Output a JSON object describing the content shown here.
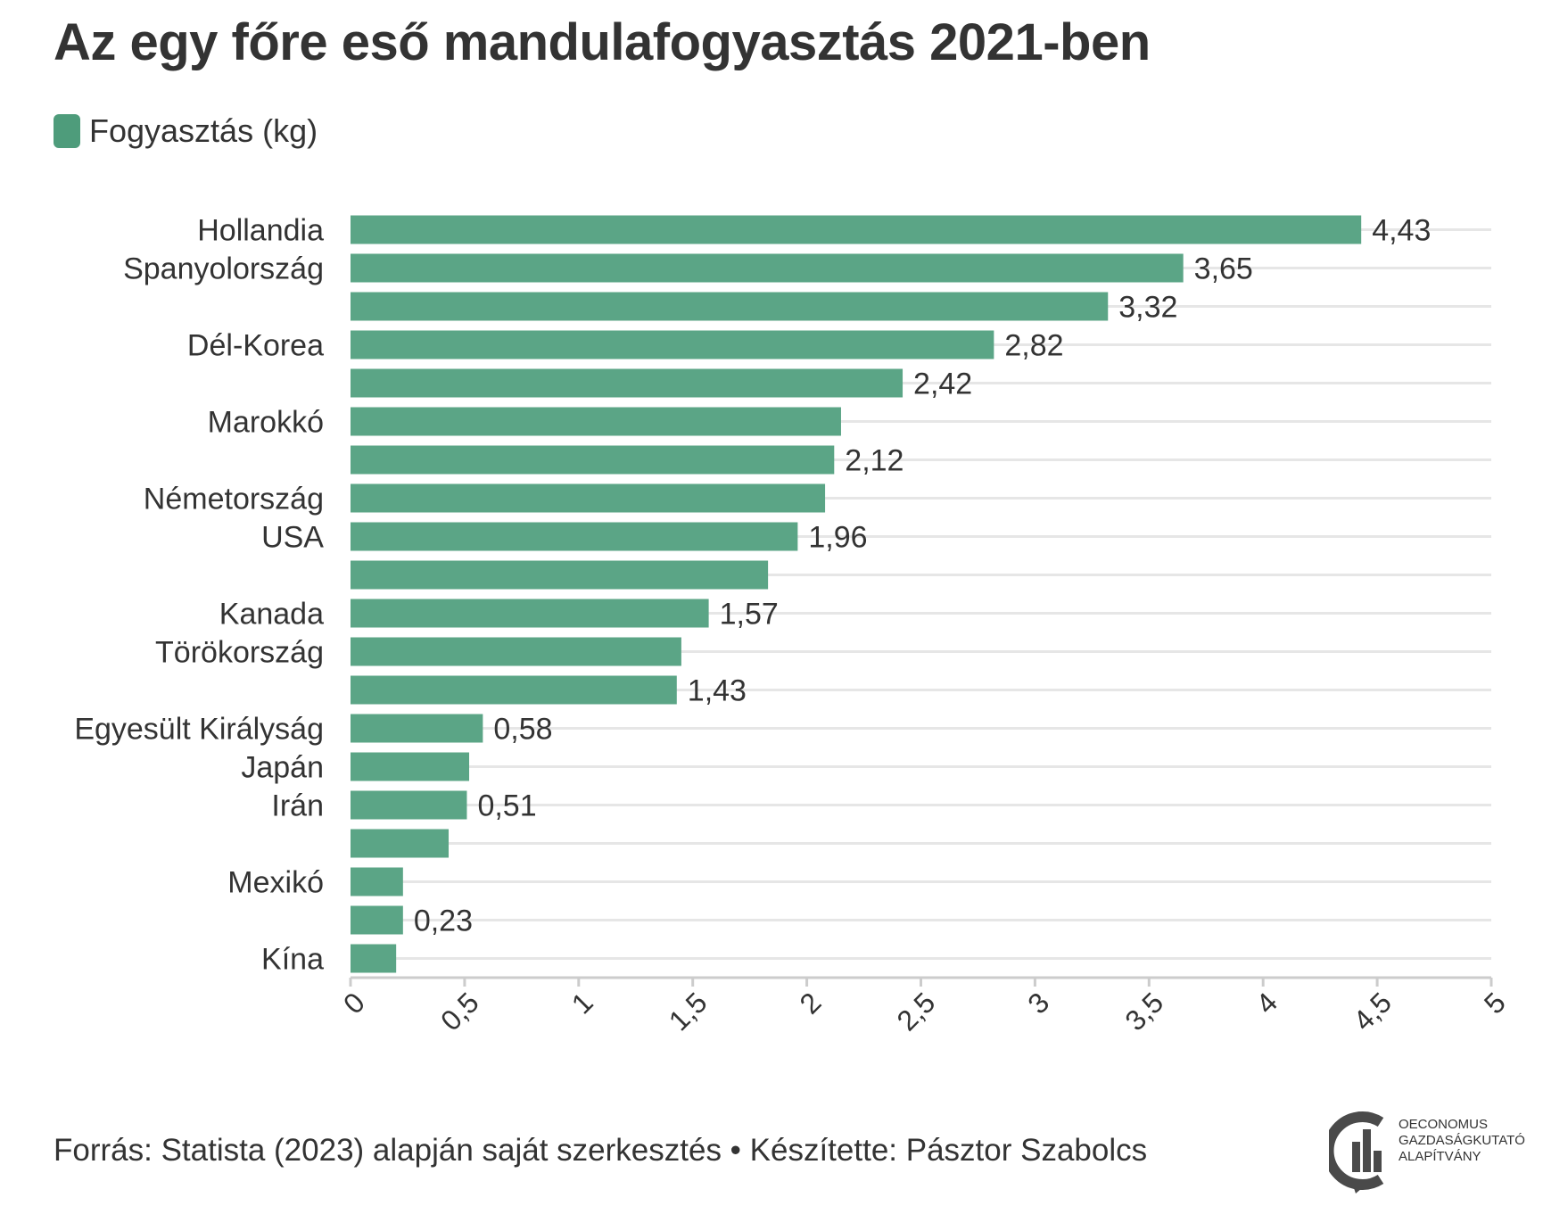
{
  "title": "Az egy főre eső mandulafogyasztás 2021-ben",
  "legend_label": "Fogyasztás (kg)",
  "footer": "Forrás: Statista (2023) alapján saját szerkesztés • Készítette: Pásztor Szabolcs",
  "logo": {
    "line1": "OECONOMUS",
    "line2": "GAZDASÁGKUTATÓ",
    "line3": "ALAPÍTVÁNY"
  },
  "colors": {
    "bar": "#5ba586",
    "legend": "#4e9c7b",
    "grid": "#e6e6e6",
    "axis": "#cccccc",
    "logo": "#4a4a4a"
  },
  "chart_data": {
    "type": "bar",
    "orientation": "horizontal",
    "categories": [
      "Hollandia",
      "Spanyolország",
      "",
      "Dél-Korea",
      "",
      "Marokkó",
      "",
      "Németország",
      "USA",
      "",
      "Kanada",
      "Törökország",
      "",
      "Egyesült Királyság",
      "Japán",
      "Irán",
      "",
      "Mexikó",
      "",
      "Kína"
    ],
    "values": [
      4.43,
      3.65,
      3.32,
      2.82,
      2.42,
      2.15,
      2.12,
      2.08,
      1.96,
      1.83,
      1.57,
      1.45,
      1.43,
      0.58,
      0.52,
      0.51,
      0.43,
      0.23,
      0.23,
      0.2
    ],
    "data_labels": [
      "4,43",
      "3,65",
      "3,32",
      "2,82",
      "2,42",
      "",
      "2,12",
      "",
      "1,96",
      "",
      "1,57",
      "",
      "1,43",
      "0,58",
      "",
      "0,51",
      "",
      "",
      "0,23",
      ""
    ],
    "series": [
      {
        "name": "Fogyasztás (kg)"
      }
    ],
    "xlim": [
      0,
      5
    ],
    "x_ticks": [
      "0",
      "0,5",
      "1",
      "1,5",
      "2",
      "2,5",
      "3",
      "3,5",
      "4",
      "4,5",
      "5"
    ],
    "legend_position": "top-left",
    "grid": true
  }
}
